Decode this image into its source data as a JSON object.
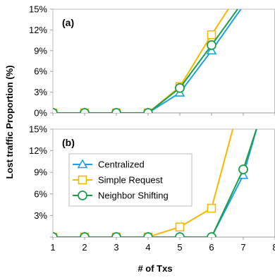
{
  "chart_data": {
    "type": "line",
    "shared_x": [
      1,
      2,
      3,
      4,
      5,
      6,
      7,
      8
    ],
    "xlabel": "# of Txs",
    "ylabel": "Lost traffic Proportion (%)",
    "xlim": [
      1,
      8
    ],
    "ylim": [
      0,
      15
    ],
    "y_ticks": [
      "0%",
      "3%",
      "6%",
      "9%",
      "12%",
      "15%"
    ],
    "x_ticks": [
      "1",
      "2",
      "3",
      "4",
      "5",
      "6",
      "7",
      "8"
    ],
    "grid": false,
    "colors": {
      "Centralized": "#1ba1e2",
      "Simple Request": "#f7b800",
      "Neighbor Shifting": "#1b9e4b"
    },
    "panels": [
      {
        "label": "(a)",
        "series": [
          {
            "name": "Centralized",
            "marker": "triangle",
            "points": [
              [
                1,
                0
              ],
              [
                2,
                0
              ],
              [
                3,
                0
              ],
              [
                4,
                0
              ],
              [
                5,
                2.9
              ],
              [
                6,
                9.0
              ],
              [
                7,
                15.5
              ]
            ]
          },
          {
            "name": "Simple Request",
            "marker": "square",
            "points": [
              [
                1,
                0
              ],
              [
                2,
                0
              ],
              [
                3,
                0
              ],
              [
                4,
                0
              ],
              [
                5,
                3.8
              ],
              [
                6,
                11.3
              ],
              [
                6.6,
                15.5
              ]
            ]
          },
          {
            "name": "Neighbor Shifting",
            "marker": "circle",
            "points": [
              [
                1,
                0
              ],
              [
                2,
                0
              ],
              [
                3,
                0
              ],
              [
                4,
                0
              ],
              [
                5,
                3.6
              ],
              [
                6,
                9.8
              ],
              [
                6.9,
                15.5
              ]
            ]
          }
        ]
      },
      {
        "label": "(b)",
        "series": [
          {
            "name": "Centralized",
            "marker": "triangle",
            "points": [
              [
                1,
                0
              ],
              [
                2,
                0
              ],
              [
                3,
                0
              ],
              [
                4,
                0
              ],
              [
                5,
                0
              ],
              [
                6,
                0
              ],
              [
                7,
                8.6
              ],
              [
                7.45,
                15.5
              ]
            ]
          },
          {
            "name": "Simple Request",
            "marker": "square",
            "points": [
              [
                1,
                0
              ],
              [
                2,
                0
              ],
              [
                3,
                0
              ],
              [
                4,
                0
              ],
              [
                5,
                1.4
              ],
              [
                6,
                4.0
              ],
              [
                6.7,
                15.5
              ]
            ]
          },
          {
            "name": "Neighbor Shifting",
            "marker": "circle",
            "points": [
              [
                1,
                0
              ],
              [
                2,
                0
              ],
              [
                3,
                0
              ],
              [
                4,
                0
              ],
              [
                5,
                0
              ],
              [
                6,
                0
              ],
              [
                7,
                9.4
              ],
              [
                7.45,
                15.5
              ]
            ]
          }
        ]
      }
    ],
    "legend": {
      "placement": "left, panel (b)",
      "entries": [
        "Centralized",
        "Simple Request",
        "Neighbor Shifting"
      ]
    }
  }
}
